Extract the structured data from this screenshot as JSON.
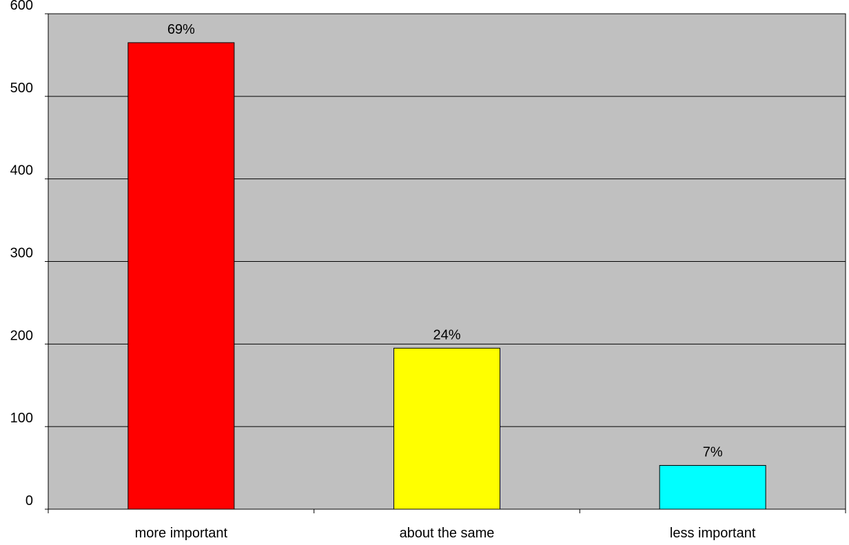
{
  "chart_data": {
    "type": "bar",
    "title": "",
    "xlabel": "",
    "ylabel": "",
    "categories": [
      "more important",
      "about the same",
      "less important"
    ],
    "values": [
      565,
      195,
      53
    ],
    "data_labels": [
      "69%",
      "24%",
      "7%"
    ],
    "bar_colors": [
      "#ff0000",
      "#ffff00",
      "#00ffff"
    ],
    "ylim": [
      0,
      600
    ],
    "yticks": [
      0,
      100,
      200,
      300,
      400,
      500,
      600
    ],
    "ytick_labels": [
      "0",
      "100",
      "200",
      "300",
      "400",
      "500",
      "600"
    ],
    "grid": true,
    "legend": "none",
    "plot_background": "#c0c0c0",
    "gridline_color": "#000000",
    "bar_outline_color": "#000000"
  }
}
